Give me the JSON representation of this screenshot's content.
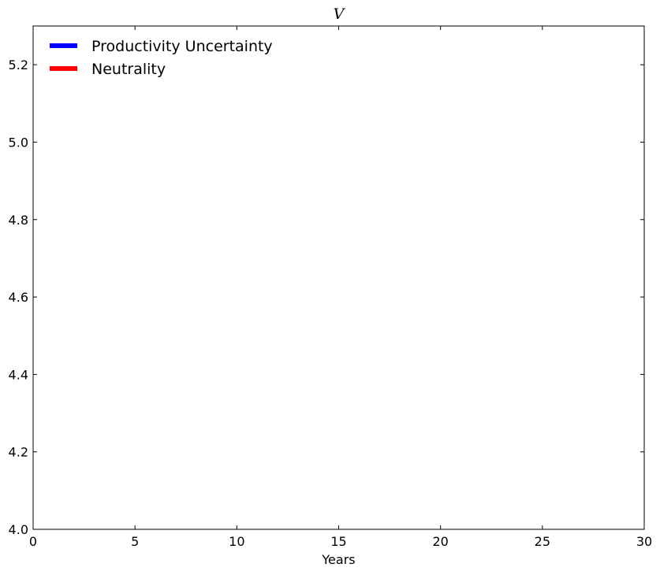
{
  "chart_data": {
    "type": "line",
    "title": "V",
    "xlabel": "Years",
    "ylabel": "",
    "xlim": [
      0,
      30
    ],
    "ylim": [
      4.0,
      5.3
    ],
    "xticks": [
      0,
      5,
      10,
      15,
      20,
      25,
      30
    ],
    "yticks": [
      4.0,
      4.2,
      4.4,
      4.6,
      4.8,
      5.0,
      5.2
    ],
    "xtick_labels": [
      "0",
      "5",
      "10",
      "15",
      "20",
      "25",
      "30"
    ],
    "ytick_labels": [
      "4.0",
      "4.2",
      "4.4",
      "4.6",
      "4.8",
      "5.0",
      "5.2"
    ],
    "grid": false,
    "legend_position": "top-left",
    "series": [
      {
        "name": "Productivity Uncertainty",
        "color": "#0000ff",
        "x": [],
        "y": []
      },
      {
        "name": "Neutrality",
        "color": "#ff0000",
        "x": [],
        "y": []
      }
    ]
  }
}
